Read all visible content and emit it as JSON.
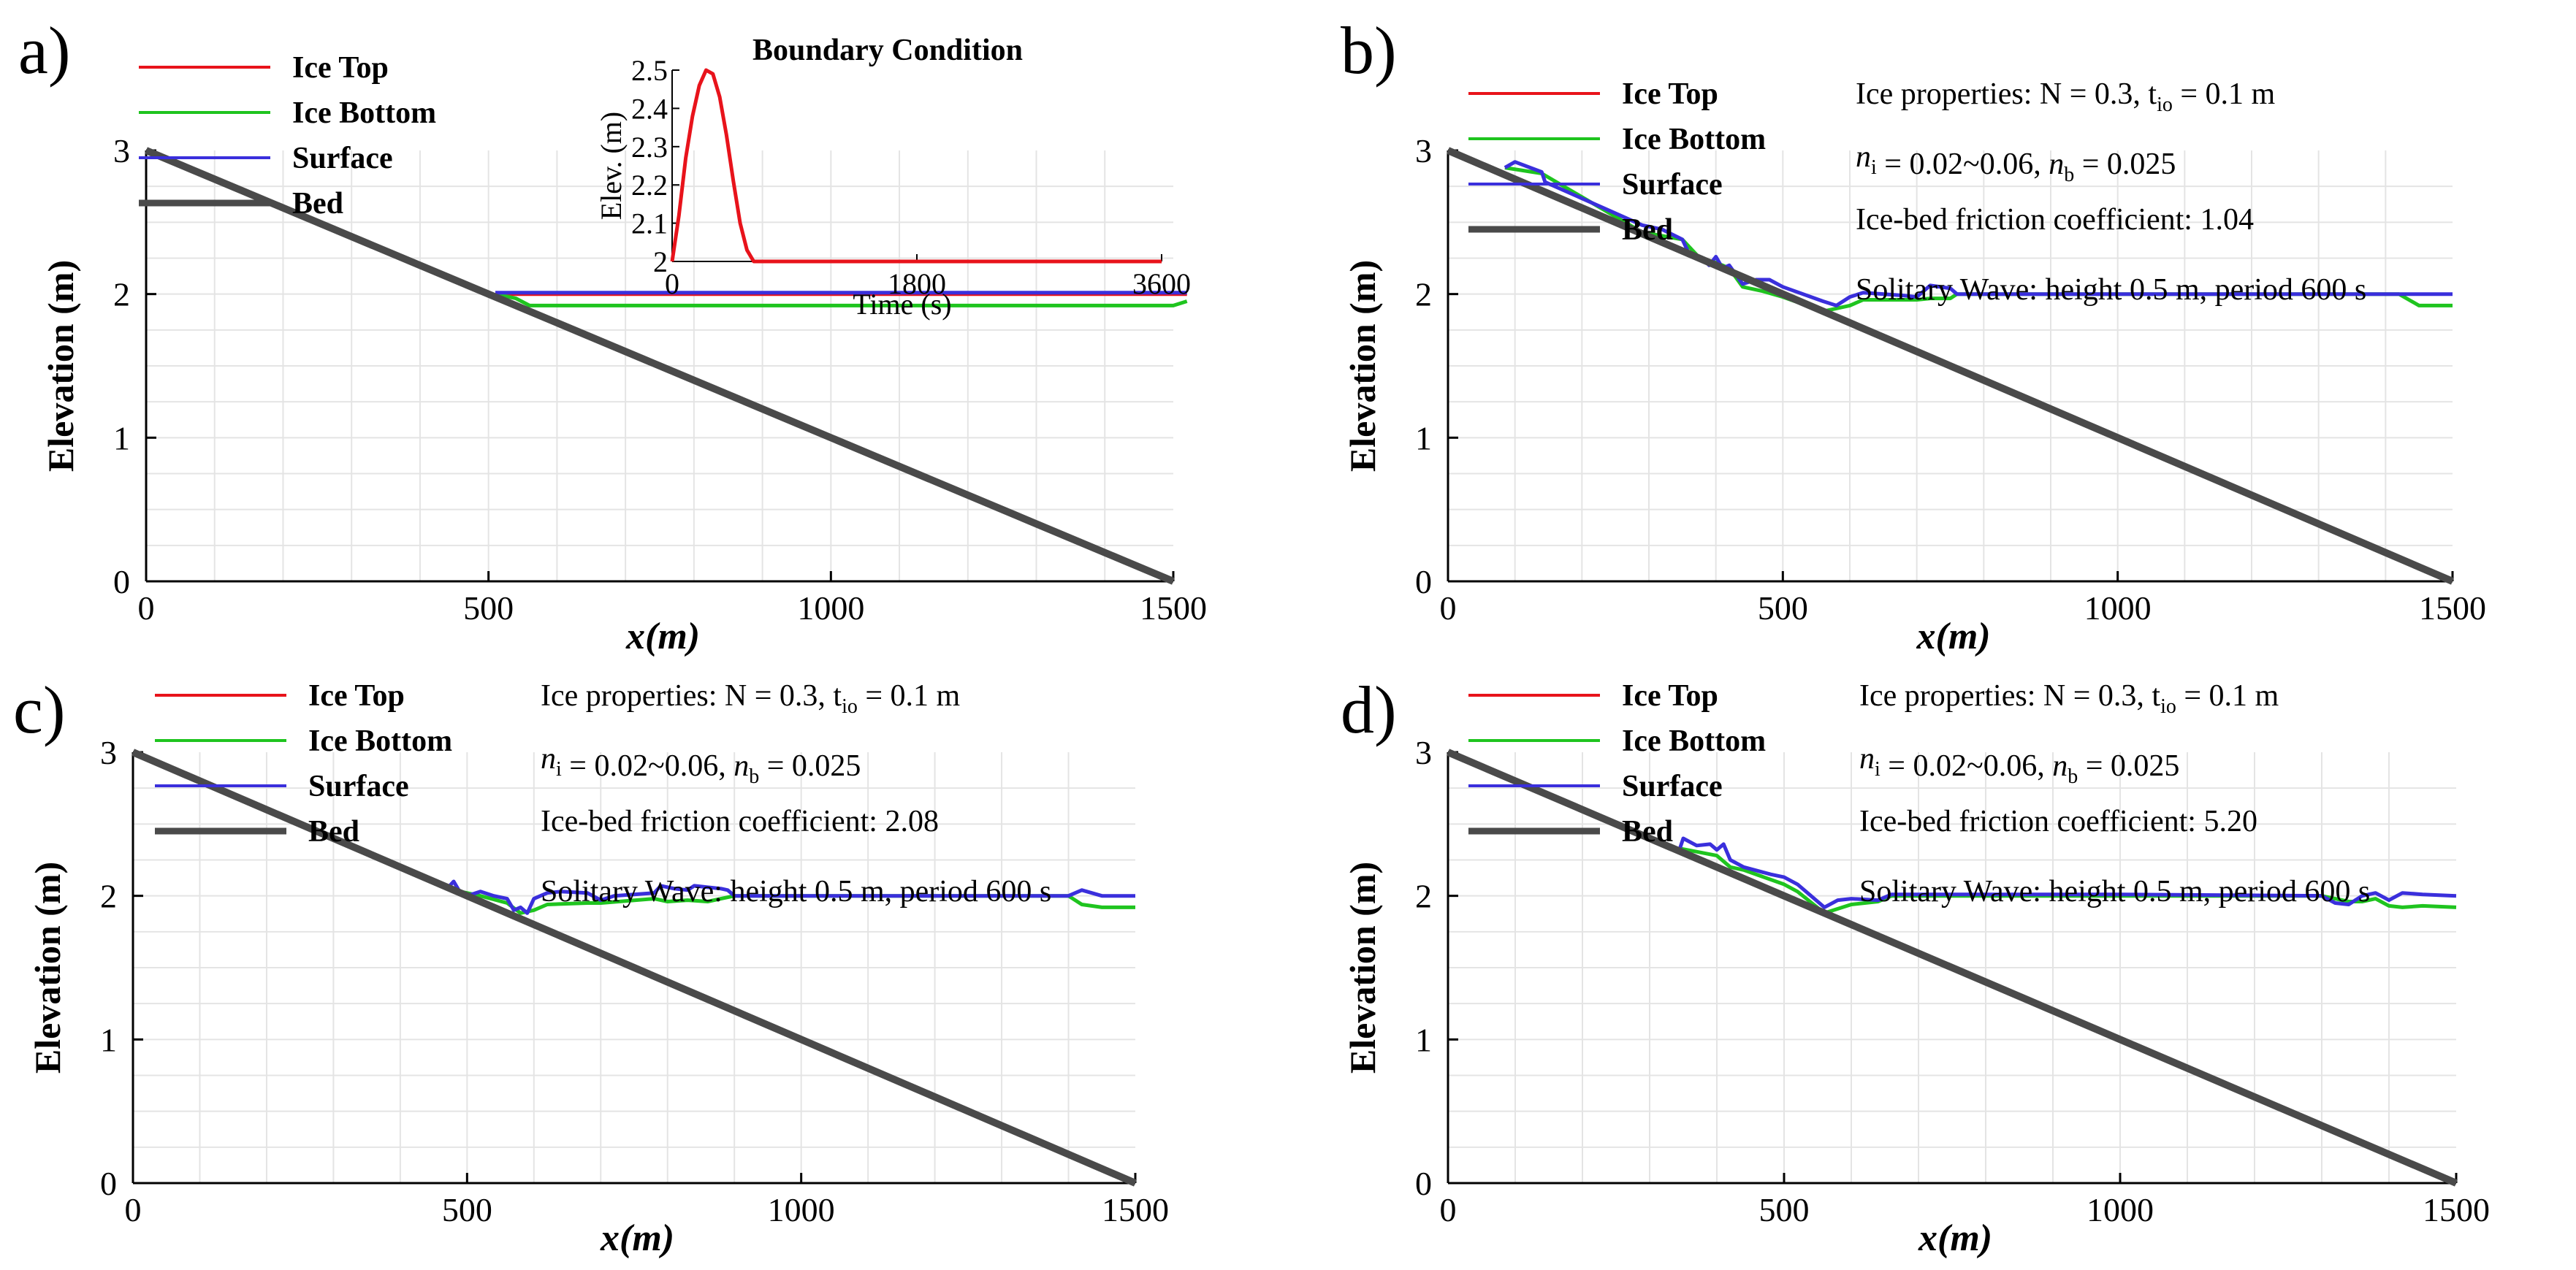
{
  "colors": {
    "ice_top": "#e8131b",
    "ice_bottom": "#1fc41f",
    "surface": "#3a2fdc",
    "bed": "#4a4a4a",
    "grid": "#e4e4e4"
  },
  "chart_data": [
    {
      "panel": "a)",
      "type": "line",
      "legend": [
        "Ice Top",
        "Ice Bottom",
        "Surface",
        "Bed"
      ],
      "annotations": [],
      "xlabel": "x (m)",
      "ylabel": "Elevation (m)",
      "xlim": [
        0,
        1500
      ],
      "ylim": [
        0,
        3
      ],
      "xticks": [
        0,
        500,
        1000,
        1500
      ],
      "yticks": [
        0,
        1,
        2,
        3
      ],
      "series": [
        {
          "name": "Ice Top",
          "x": [
            510,
            530,
            560,
            1000,
            1500,
            1520
          ],
          "y": [
            2.0,
            2.0,
            2.0,
            2.0,
            2.0,
            2.0
          ]
        },
        {
          "name": "Ice Bottom",
          "x": [
            510,
            540,
            560,
            1000,
            1500,
            1520
          ],
          "y": [
            2.0,
            1.97,
            1.92,
            1.92,
            1.92,
            1.95
          ]
        },
        {
          "name": "Surface",
          "x": [
            510,
            530,
            560,
            1000,
            1500,
            1520
          ],
          "y": [
            2.01,
            2.01,
            2.01,
            2.01,
            2.01,
            2.01
          ]
        },
        {
          "name": "Bed",
          "x": [
            0,
            1500
          ],
          "y": [
            3.0,
            0.0
          ]
        }
      ],
      "inset": {
        "title": "Boundary Condition",
        "xlabel": "Time (s)",
        "ylabel": "Elev. (m)",
        "xlim": [
          0,
          3600
        ],
        "ylim": [
          2.0,
          2.5
        ],
        "xticks": [
          0,
          1800,
          3600
        ],
        "yticks": [
          2.0,
          2.1,
          2.2,
          2.3,
          2.4,
          2.5
        ],
        "ytick_labels": [
          "2",
          "2.1",
          "2.2",
          "2.3",
          "2.4",
          "2.5"
        ],
        "x": [
          0,
          50,
          100,
          150,
          200,
          250,
          300,
          350,
          400,
          450,
          500,
          550,
          600,
          3600
        ],
        "y": [
          2.0,
          2.12,
          2.27,
          2.38,
          2.46,
          2.5,
          2.49,
          2.43,
          2.33,
          2.21,
          2.1,
          2.03,
          2.0,
          2.0
        ]
      }
    },
    {
      "panel": "b)",
      "type": "line",
      "legend": [
        "Ice Top",
        "Ice Bottom",
        "Surface",
        "Bed"
      ],
      "annotations": [
        "Ice properties: N = 0.3, tᵢₒ = 0.1 m",
        "nᵢ = 0.02~0.06, nᵦ = 0.025",
        "Ice-bed friction coefficient: 1.04",
        "Solitary Wave: height 0.5 m, period 600 s"
      ],
      "xlabel": "x (m)",
      "ylabel": "Elevation (m)",
      "xlim": [
        0,
        1500
      ],
      "ylim": [
        0,
        3
      ],
      "xticks": [
        0,
        500,
        1000,
        1500
      ],
      "yticks": [
        0,
        1,
        2,
        3
      ],
      "series": [
        {
          "name": "Ice Bottom",
          "x": [
            85,
            140,
            290,
            350,
            380,
            400,
            420,
            440,
            470,
            500,
            560,
            600,
            620,
            700,
            720,
            750,
            760,
            1420,
            1450,
            1500
          ],
          "y": [
            2.88,
            2.84,
            2.43,
            2.38,
            2.23,
            2.22,
            2.18,
            2.05,
            2.02,
            1.98,
            1.88,
            1.92,
            1.96,
            1.96,
            1.97,
            1.97,
            2.0,
            2.0,
            1.92,
            1.92
          ]
        },
        {
          "name": "Surface",
          "x": [
            85,
            100,
            140,
            145,
            290,
            320,
            350,
            360,
            380,
            390,
            400,
            410,
            420,
            440,
            460,
            480,
            500,
            560,
            580,
            600,
            620,
            680,
            700,
            720,
            750,
            760,
            1000,
            1420,
            1450,
            1500
          ],
          "y": [
            2.88,
            2.92,
            2.85,
            2.78,
            2.48,
            2.45,
            2.38,
            2.28,
            2.25,
            2.2,
            2.26,
            2.18,
            2.2,
            2.07,
            2.1,
            2.1,
            2.05,
            1.95,
            1.92,
            1.98,
            2.01,
            1.99,
            1.98,
            2.06,
            2.04,
            2.0,
            2.0,
            2.0,
            2.0,
            2.0
          ]
        },
        {
          "name": "Bed",
          "x": [
            0,
            1500
          ],
          "y": [
            3.0,
            0.0
          ]
        }
      ]
    },
    {
      "panel": "c)",
      "type": "line",
      "legend": [
        "Ice Top",
        "Ice Bottom",
        "Surface",
        "Bed"
      ],
      "annotations": [
        "Ice properties: N = 0.3, tᵢₒ = 0.1 m",
        "nᵢ = 0.02~0.06, nᵦ = 0.025",
        "Ice-bed friction coefficient: 2.08",
        "Solitary Wave: height 0.5 m, period 600 s"
      ],
      "xlabel": "x (m)",
      "ylabel": "Elevation (m)",
      "xlim": [
        0,
        1500
      ],
      "ylim": [
        0,
        3
      ],
      "xticks": [
        0,
        500,
        1000,
        1500
      ],
      "yticks": [
        0,
        1,
        2,
        3
      ],
      "series": [
        {
          "name": "Ice Bottom",
          "x": [
            470,
            520,
            560,
            580,
            600,
            620,
            680,
            700,
            780,
            800,
            830,
            860,
            880,
            900,
            1400,
            1420,
            1450,
            1500
          ],
          "y": [
            2.05,
            2.0,
            1.95,
            1.88,
            1.9,
            1.94,
            1.95,
            1.95,
            1.98,
            1.96,
            1.97,
            1.96,
            1.98,
            2.0,
            2.0,
            1.94,
            1.92,
            1.92
          ]
        },
        {
          "name": "Surface",
          "x": [
            470,
            480,
            490,
            500,
            520,
            540,
            560,
            570,
            580,
            590,
            600,
            620,
            640,
            680,
            700,
            720,
            780,
            790,
            810,
            830,
            840,
            860,
            880,
            890,
            900,
            1000,
            1400,
            1420,
            1450,
            1500
          ],
          "y": [
            2.05,
            2.1,
            2.02,
            2.0,
            2.03,
            2.0,
            1.98,
            1.9,
            1.92,
            1.88,
            1.98,
            2.02,
            2.03,
            2.02,
            1.97,
            2.0,
            2.02,
            2.07,
            2.05,
            2.04,
            2.07,
            2.06,
            2.05,
            2.04,
            2.0,
            2.0,
            2.0,
            2.04,
            2.0,
            2.0
          ]
        },
        {
          "name": "Bed",
          "x": [
            0,
            1500
          ],
          "y": [
            3.0,
            0.0
          ]
        }
      ]
    },
    {
      "panel": "d)",
      "type": "line",
      "legend": [
        "Ice Top",
        "Ice Bottom",
        "Surface",
        "Bed"
      ],
      "annotations": [
        "Ice properties: N = 0.3, tᵢₒ = 0.1 m",
        "nᵢ = 0.02~0.06, nᵦ = 0.025",
        "Ice-bed friction coefficient: 5.20",
        "Solitary Wave: height 0.5 m, period 600 s"
      ],
      "xlabel": "x (m)",
      "ylabel": "Elevation (m)",
      "xlim": [
        0,
        1500
      ],
      "ylim": [
        0,
        3
      ],
      "xticks": [
        0,
        500,
        1000,
        1500
      ],
      "yticks": [
        0,
        1,
        2,
        3
      ],
      "series": [
        {
          "name": "Ice Bottom",
          "x": [
            345,
            400,
            420,
            440,
            500,
            520,
            560,
            600,
            640,
            660,
            1300,
            1340,
            1360,
            1380,
            1400,
            1420,
            1450,
            1500
          ],
          "y": [
            2.33,
            2.28,
            2.2,
            2.18,
            2.08,
            2.03,
            1.88,
            1.94,
            1.96,
            2.0,
            2.0,
            1.96,
            1.96,
            1.98,
            1.93,
            1.92,
            1.93,
            1.92
          ]
        },
        {
          "name": "Surface",
          "x": [
            345,
            350,
            370,
            390,
            400,
            410,
            420,
            440,
            480,
            500,
            520,
            560,
            580,
            600,
            640,
            660,
            1000,
            1300,
            1320,
            1340,
            1360,
            1380,
            1400,
            1420,
            1450,
            1500
          ],
          "y": [
            2.33,
            2.4,
            2.35,
            2.36,
            2.32,
            2.36,
            2.25,
            2.2,
            2.15,
            2.13,
            2.08,
            1.92,
            1.97,
            1.98,
            1.97,
            2.01,
            2.01,
            2.0,
            1.95,
            1.94,
            2.0,
            2.02,
            1.97,
            2.02,
            2.01,
            2.0
          ]
        },
        {
          "name": "Bed",
          "x": [
            0,
            1500
          ],
          "y": [
            3.0,
            0.0
          ]
        }
      ]
    }
  ]
}
